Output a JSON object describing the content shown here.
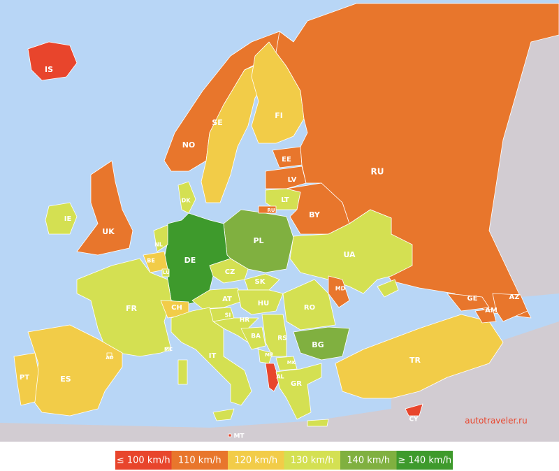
{
  "map": {
    "countries": [
      {
        "code": "IS",
        "color": "#e8452c"
      },
      {
        "code": "NO",
        "color": "#e8762c"
      },
      {
        "code": "SE",
        "color": "#f2cc48"
      },
      {
        "code": "FI",
        "color": "#f2cc48"
      },
      {
        "code": "EE",
        "color": "#e8762c"
      },
      {
        "code": "LV",
        "color": "#e8762c"
      },
      {
        "code": "LT",
        "color": "#d4e052"
      },
      {
        "code": "RU",
        "color": "#e8762c"
      },
      {
        "code": "BY",
        "color": "#e8762c"
      },
      {
        "code": "UK",
        "color": "#e8762c"
      },
      {
        "code": "IE",
        "color": "#d4e052"
      },
      {
        "code": "PL",
        "color": "#80b040"
      },
      {
        "code": "DE",
        "color": "#3e9a2c"
      },
      {
        "code": "DK",
        "color": "#d4e052"
      },
      {
        "code": "NL",
        "color": "#d4e052"
      },
      {
        "code": "BE",
        "color": "#f2cc48"
      },
      {
        "code": "LU",
        "color": "#d4e052"
      },
      {
        "code": "FR",
        "color": "#d4e052"
      },
      {
        "code": "CH",
        "color": "#f2cc48"
      },
      {
        "code": "AT",
        "color": "#d4e052"
      },
      {
        "code": "CZ",
        "color": "#d4e052"
      },
      {
        "code": "SK",
        "color": "#d4e052"
      },
      {
        "code": "HU",
        "color": "#d4e052"
      },
      {
        "code": "UA",
        "color": "#d4e052"
      },
      {
        "code": "MD",
        "color": "#e8762c"
      },
      {
        "code": "RO",
        "color": "#d4e052"
      },
      {
        "code": "SI",
        "color": "#d4e052"
      },
      {
        "code": "HR",
        "color": "#d4e052"
      },
      {
        "code": "BA",
        "color": "#d4e052"
      },
      {
        "code": "RS",
        "color": "#d4e052"
      },
      {
        "code": "ME",
        "color": "#d4e052"
      },
      {
        "code": "AL",
        "color": "#e8452c"
      },
      {
        "code": "MK",
        "color": "#d4e052"
      },
      {
        "code": "GR",
        "color": "#d4e052"
      },
      {
        "code": "BG",
        "color": "#80b040"
      },
      {
        "code": "IT",
        "color": "#d4e052"
      },
      {
        "code": "ES",
        "color": "#f2cc48"
      },
      {
        "code": "PT",
        "color": "#f2cc48"
      },
      {
        "code": "AD",
        "color": "#f2cc48"
      },
      {
        "code": "MC",
        "color": "#d4e052"
      },
      {
        "code": "TR",
        "color": "#f2cc48"
      },
      {
        "code": "GE",
        "color": "#e8762c"
      },
      {
        "code": "AM",
        "color": "#e8762c"
      },
      {
        "code": "AZ",
        "color": "#e8762c"
      },
      {
        "code": "CY",
        "color": "#e8452c"
      },
      {
        "code": "MT",
        "color": "#e8452c"
      },
      {
        "code": "RU",
        "color": "#e8762c"
      }
    ],
    "legend": [
      {
        "label": "≤ 100 km/h",
        "color": "#e8452c"
      },
      {
        "label": "110 km/h",
        "color": "#e8762c"
      },
      {
        "label": "120 km/h",
        "color": "#f2cc48"
      },
      {
        "label": "130 km/h",
        "color": "#d4e052"
      },
      {
        "label": "140 km/h",
        "color": "#80b040"
      },
      {
        "label": "≥ 140 km/h",
        "color": "#3e9a2c"
      }
    ],
    "watermark": "autotraveler.ru"
  }
}
